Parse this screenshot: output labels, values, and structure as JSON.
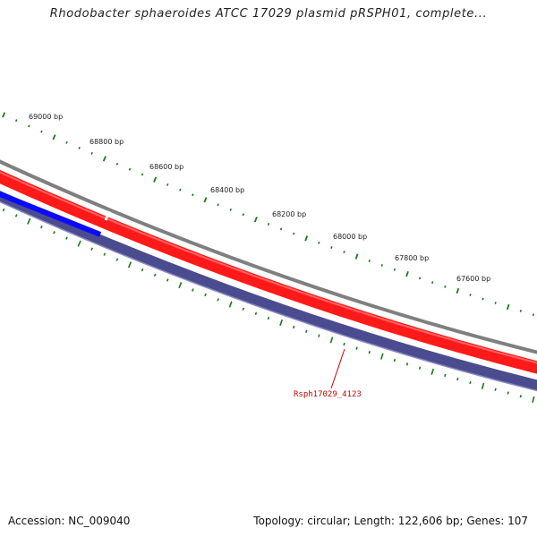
{
  "title": "Rhodobacter sphaeroides ATCC 17029 plasmid pRSPH01, complete...",
  "footer": {
    "accession": "Accession: NC_009040",
    "summary": "Topology: circular; Length: 122,606 bp; Genes: 107"
  },
  "ruler": {
    "labels": [
      "69000 bp",
      "68800 bp",
      "68600 bp",
      "68400 bp",
      "68200 bp",
      "68000 bp",
      "67800 bp",
      "67600 bp"
    ]
  },
  "callout": {
    "gene": "Rsph17029_4123"
  },
  "colors": {
    "backbone": "#808080",
    "forward_gene": "#ff0000",
    "reverse_gene": "#4a4a8e",
    "reverse_gene_highlight": "#0000ff",
    "ticks": "#1a7a1a",
    "callout": "#cc0000"
  }
}
